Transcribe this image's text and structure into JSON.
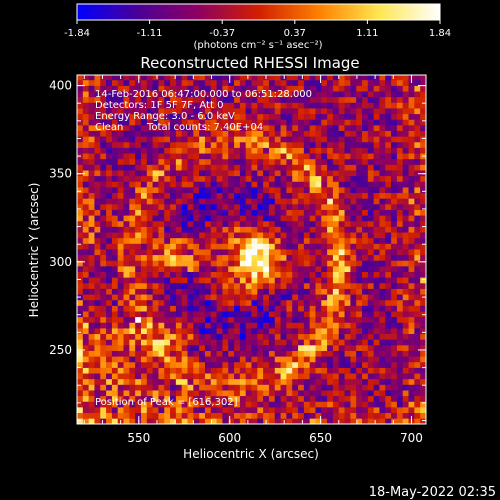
{
  "chart_data": {
    "type": "heatmap",
    "title": "Reconstructed RHESSI Image",
    "xlabel": "Heliocentric X (arcsec)",
    "ylabel": "Heliocentric Y (arcsec)",
    "xlim": [
      516,
      708
    ],
    "ylim": [
      208,
      406
    ],
    "x_ticks": [
      550,
      600,
      650,
      700
    ],
    "y_ticks": [
      250,
      300,
      350,
      400
    ],
    "colorbar": {
      "min": -1.84,
      "max": 1.84,
      "tick_labels": [
        "-1.84",
        "-1.11",
        "-0.37",
        "0.37",
        "1.11",
        "1.84"
      ],
      "unit_label": "(photons cm⁻² s⁻¹ asec⁻²)",
      "colormap": [
        "#0000ff",
        "#4b0096",
        "#8c0064",
        "#d21e00",
        "#ff8200",
        "#ffe650",
        "#ffffff"
      ]
    },
    "annotations": {
      "time_range": "14-Feb-2016 06:47:00.000 to 06:51:28.000",
      "detectors": "Detectors: 1F 5F 7F, Att 0",
      "energy_range": "Energy Range: 3.0 - 6.0 keV",
      "method": "Clean",
      "total_counts": "Total counts: 7.40E+04",
      "peak_position": "Position of Peak = [616,302]"
    },
    "sources": [
      {
        "x": 616,
        "y": 302,
        "peak": 1.84
      },
      {
        "x": 570,
        "y": 304,
        "peak": 1.15
      }
    ],
    "ring": {
      "center_x": 603,
      "center_y": 300,
      "radius_x": 58,
      "radius_y": 70,
      "peak": 0.75
    }
  },
  "footer": {
    "timestamp": "18-May-2022 02:35"
  }
}
